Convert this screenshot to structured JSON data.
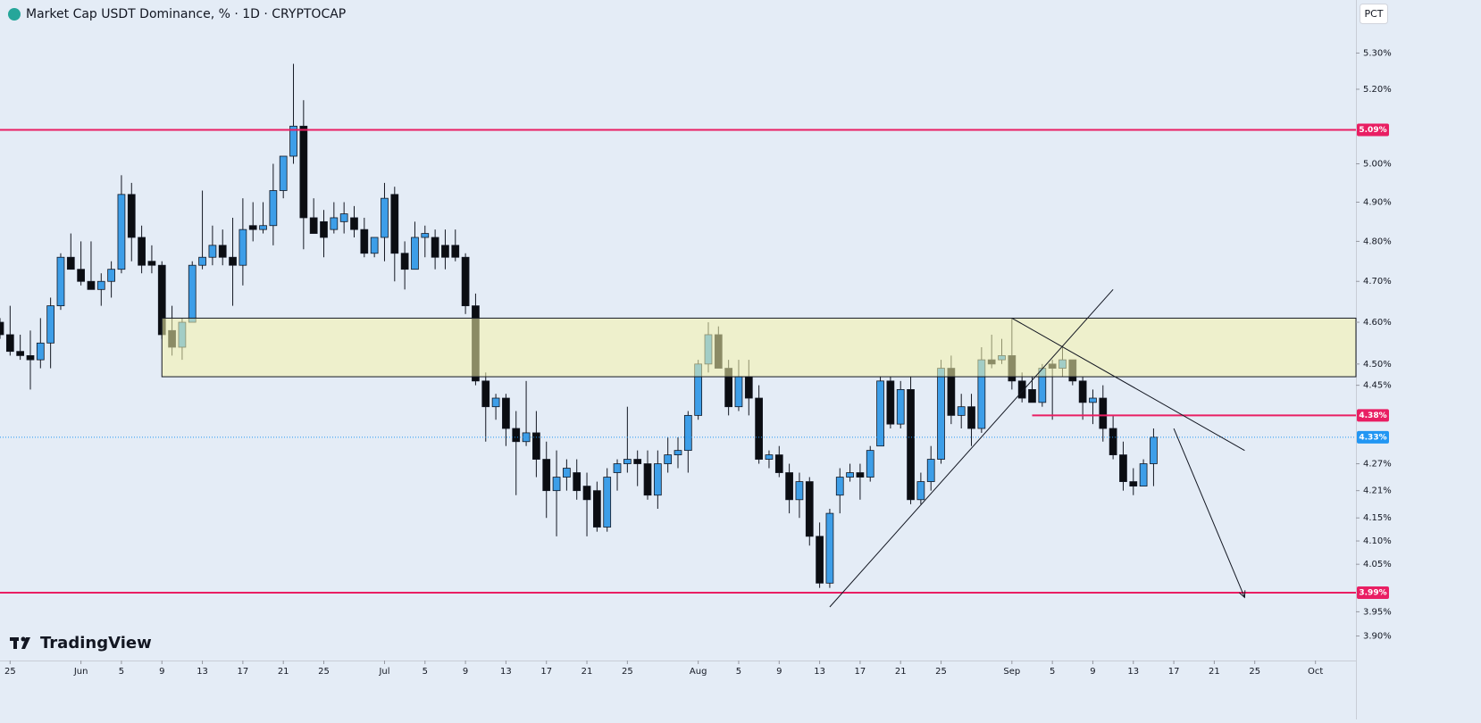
{
  "chart_data": {
    "type": "candlestick",
    "title": "Market Cap USDT Dominance, % · 1D · CRYPTOCAP",
    "scale_label": "PCT",
    "watermark": "TradingView",
    "log_scale": true,
    "up_color": "#3d9ee8",
    "down_color": "#0b0d12",
    "wick_color": "#131722",
    "x": [
      "05-24",
      "05-25",
      "05-26",
      "05-27",
      "05-28",
      "05-29",
      "05-30",
      "05-31",
      "06-01",
      "06-02",
      "06-03",
      "06-04",
      "06-05",
      "06-06",
      "06-07",
      "06-08",
      "06-09",
      "06-10",
      "06-11",
      "06-12",
      "06-13",
      "06-14",
      "06-15",
      "06-16",
      "06-17",
      "06-18",
      "06-19",
      "06-20",
      "06-21",
      "06-22",
      "06-23",
      "06-24",
      "06-25",
      "06-26",
      "06-27",
      "06-28",
      "06-29",
      "06-30",
      "07-01",
      "07-02",
      "07-03",
      "07-04",
      "07-05",
      "07-06",
      "07-07",
      "07-08",
      "07-09",
      "07-10",
      "07-11",
      "07-12",
      "07-13",
      "07-14",
      "07-15",
      "07-16",
      "07-17",
      "07-18",
      "07-19",
      "07-20",
      "07-21",
      "07-22",
      "07-23",
      "07-24",
      "07-25",
      "07-26",
      "07-27",
      "07-28",
      "07-29",
      "07-30",
      "07-31",
      "08-01",
      "08-02",
      "08-03",
      "08-04",
      "08-05",
      "08-06",
      "08-07",
      "08-08",
      "08-09",
      "08-10",
      "08-11",
      "08-12",
      "08-13",
      "08-14",
      "08-15",
      "08-16",
      "08-17",
      "08-18",
      "08-19",
      "08-20",
      "08-21",
      "08-22",
      "08-23",
      "08-24",
      "08-25",
      "08-26",
      "08-27",
      "08-28",
      "08-29",
      "08-30",
      "08-31",
      "09-01",
      "09-02",
      "09-03",
      "09-04",
      "09-05",
      "09-06",
      "09-07",
      "09-08",
      "09-09",
      "09-10",
      "09-11",
      "09-12",
      "09-13",
      "09-14",
      "09-15"
    ],
    "open": [
      4.6,
      4.57,
      4.53,
      4.52,
      4.51,
      4.55,
      4.64,
      4.76,
      4.73,
      4.7,
      4.68,
      4.7,
      4.73,
      4.92,
      4.81,
      4.75,
      4.74,
      4.58,
      4.54,
      4.6,
      4.74,
      4.76,
      4.79,
      4.76,
      4.74,
      4.84,
      4.83,
      4.84,
      4.93,
      5.02,
      5.1,
      4.86,
      4.85,
      4.83,
      4.85,
      4.86,
      4.83,
      4.77,
      4.81,
      4.92,
      4.77,
      4.73,
      4.81,
      4.81,
      4.79,
      4.79,
      4.76,
      4.64,
      4.46,
      4.4,
      4.42,
      4.35,
      4.32,
      4.34,
      4.28,
      4.21,
      4.24,
      4.25,
      4.22,
      4.21,
      4.13,
      4.25,
      4.27,
      4.28,
      4.27,
      4.2,
      4.27,
      4.29,
      4.3,
      4.38,
      4.5,
      4.57,
      4.49,
      4.4,
      4.47,
      4.42,
      4.28,
      4.29,
      4.25,
      4.19,
      4.23,
      4.11,
      4.01,
      4.2,
      4.24,
      4.25,
      4.24,
      4.31,
      4.46,
      4.36,
      4.44,
      4.19,
      4.23,
      4.28,
      4.49,
      4.38,
      4.4,
      4.35,
      4.51,
      4.51,
      4.52,
      4.46,
      4.44,
      4.41,
      4.5,
      4.49,
      4.51,
      4.46,
      4.41,
      4.42,
      4.35,
      4.29,
      4.23,
      4.22,
      4.27
    ],
    "high": [
      4.61,
      4.64,
      4.57,
      4.58,
      4.61,
      4.66,
      4.77,
      4.82,
      4.8,
      4.8,
      4.72,
      4.75,
      4.97,
      4.95,
      4.84,
      4.79,
      4.75,
      4.64,
      4.61,
      4.75,
      4.93,
      4.84,
      4.83,
      4.86,
      4.91,
      4.9,
      4.9,
      5.0,
      5.02,
      5.27,
      5.17,
      4.91,
      4.88,
      4.9,
      4.9,
      4.89,
      4.86,
      4.81,
      4.95,
      4.94,
      4.8,
      4.85,
      4.84,
      4.83,
      4.83,
      4.83,
      4.77,
      4.67,
      4.48,
      4.43,
      4.43,
      4.39,
      4.46,
      4.39,
      4.32,
      4.3,
      4.28,
      4.28,
      4.25,
      4.23,
      4.26,
      4.28,
      4.4,
      4.3,
      4.3,
      4.3,
      4.33,
      4.33,
      4.39,
      4.51,
      4.6,
      4.59,
      4.51,
      4.51,
      4.51,
      4.45,
      4.3,
      4.31,
      4.27,
      4.25,
      4.24,
      4.14,
      4.17,
      4.26,
      4.27,
      4.27,
      4.31,
      4.47,
      4.47,
      4.46,
      4.47,
      4.25,
      4.31,
      4.51,
      4.52,
      4.43,
      4.43,
      4.54,
      4.57,
      4.56,
      4.61,
      4.48,
      4.47,
      4.5,
      4.51,
      4.54,
      4.51,
      4.47,
      4.44,
      4.45,
      4.38,
      4.32,
      4.26,
      4.28,
      4.35
    ],
    "low": [
      4.56,
      4.52,
      4.51,
      4.44,
      4.49,
      4.49,
      4.63,
      4.73,
      4.69,
      4.68,
      4.64,
      4.66,
      4.72,
      4.75,
      4.72,
      4.72,
      4.56,
      4.52,
      4.51,
      4.6,
      4.73,
      4.74,
      4.74,
      4.64,
      4.69,
      4.8,
      4.82,
      4.79,
      4.91,
      5.0,
      4.78,
      4.82,
      4.76,
      4.82,
      4.82,
      4.81,
      4.76,
      4.76,
      4.75,
      4.7,
      4.68,
      4.73,
      4.76,
      4.73,
      4.73,
      4.75,
      4.62,
      4.45,
      4.32,
      4.37,
      4.31,
      4.2,
      4.31,
      4.24,
      4.15,
      4.11,
      4.21,
      4.19,
      4.11,
      4.12,
      4.12,
      4.21,
      4.25,
      4.22,
      4.19,
      4.17,
      4.25,
      4.26,
      4.25,
      4.37,
      4.48,
      4.49,
      4.38,
      4.39,
      4.38,
      4.27,
      4.26,
      4.24,
      4.16,
      4.15,
      4.09,
      4.0,
      4.0,
      4.16,
      4.23,
      4.19,
      4.23,
      4.31,
      4.35,
      4.35,
      4.18,
      4.18,
      4.21,
      4.27,
      4.36,
      4.35,
      4.31,
      4.34,
      4.49,
      4.5,
      4.44,
      4.41,
      4.41,
      4.4,
      4.37,
      4.47,
      4.45,
      4.37,
      4.36,
      4.32,
      4.28,
      4.21,
      4.2,
      4.22,
      4.22
    ],
    "close": [
      4.57,
      4.53,
      4.52,
      4.51,
      4.55,
      4.64,
      4.76,
      4.73,
      4.7,
      4.68,
      4.7,
      4.73,
      4.92,
      4.81,
      4.74,
      4.74,
      4.57,
      4.54,
      4.6,
      4.74,
      4.76,
      4.79,
      4.76,
      4.74,
      4.83,
      4.83,
      4.84,
      4.93,
      5.02,
      5.1,
      4.86,
      4.82,
      4.81,
      4.86,
      4.87,
      4.83,
      4.77,
      4.81,
      4.91,
      4.77,
      4.73,
      4.81,
      4.82,
      4.76,
      4.76,
      4.76,
      4.64,
      4.46,
      4.4,
      4.42,
      4.35,
      4.32,
      4.34,
      4.28,
      4.21,
      4.24,
      4.26,
      4.21,
      4.19,
      4.13,
      4.24,
      4.27,
      4.28,
      4.27,
      4.2,
      4.27,
      4.29,
      4.3,
      4.38,
      4.5,
      4.57,
      4.49,
      4.4,
      4.47,
      4.42,
      4.28,
      4.29,
      4.25,
      4.19,
      4.23,
      4.11,
      4.01,
      4.16,
      4.24,
      4.25,
      4.24,
      4.3,
      4.46,
      4.36,
      4.44,
      4.19,
      4.23,
      4.28,
      4.49,
      4.38,
      4.4,
      4.35,
      4.51,
      4.5,
      4.52,
      4.46,
      4.42,
      4.41,
      4.49,
      4.49,
      4.51,
      4.46,
      4.41,
      4.42,
      4.35,
      4.29,
      4.23,
      4.22,
      4.27,
      4.33
    ],
    "xlim": [
      "05-24",
      "10-05"
    ],
    "xticks": [
      {
        "value": "05-25",
        "label": "25"
      },
      {
        "value": "06-01",
        "label": "Jun"
      },
      {
        "value": "06-05",
        "label": "5"
      },
      {
        "value": "06-09",
        "label": "9"
      },
      {
        "value": "06-13",
        "label": "13"
      },
      {
        "value": "06-17",
        "label": "17"
      },
      {
        "value": "06-21",
        "label": "21"
      },
      {
        "value": "06-25",
        "label": "25"
      },
      {
        "value": "07-01",
        "label": "Jul"
      },
      {
        "value": "07-05",
        "label": "5"
      },
      {
        "value": "07-09",
        "label": "9"
      },
      {
        "value": "07-13",
        "label": "13"
      },
      {
        "value": "07-17",
        "label": "17"
      },
      {
        "value": "07-21",
        "label": "21"
      },
      {
        "value": "07-25",
        "label": "25"
      },
      {
        "value": "08-01",
        "label": "Aug"
      },
      {
        "value": "08-05",
        "label": "5"
      },
      {
        "value": "08-09",
        "label": "9"
      },
      {
        "value": "08-13",
        "label": "13"
      },
      {
        "value": "08-17",
        "label": "17"
      },
      {
        "value": "08-21",
        "label": "21"
      },
      {
        "value": "08-25",
        "label": "25"
      },
      {
        "value": "09-01",
        "label": "Sep"
      },
      {
        "value": "09-05",
        "label": "5"
      },
      {
        "value": "09-09",
        "label": "9"
      },
      {
        "value": "09-13",
        "label": "13"
      },
      {
        "value": "09-17",
        "label": "17"
      },
      {
        "value": "09-21",
        "label": "21"
      },
      {
        "value": "09-25",
        "label": "25"
      },
      {
        "value": "10-01",
        "label": "Oct"
      }
    ],
    "ylim": [
      3.85,
      5.45
    ],
    "yticks": [
      {
        "value": 5.3,
        "label": "5.30%"
      },
      {
        "value": 5.2,
        "label": "5.20%"
      },
      {
        "value": 5.0,
        "label": "5.00%"
      },
      {
        "value": 4.9,
        "label": "4.90%"
      },
      {
        "value": 4.8,
        "label": "4.80%"
      },
      {
        "value": 4.7,
        "label": "4.70%"
      },
      {
        "value": 4.6,
        "label": "4.60%"
      },
      {
        "value": 4.5,
        "label": "4.50%"
      },
      {
        "value": 4.45,
        "label": "4.45%"
      },
      {
        "value": 4.27,
        "label": "4.27%"
      },
      {
        "value": 4.21,
        "label": "4.21%"
      },
      {
        "value": 4.15,
        "label": "4.15%"
      },
      {
        "value": 4.1,
        "label": "4.10%"
      },
      {
        "value": 4.05,
        "label": "4.05%"
      },
      {
        "value": 3.95,
        "label": "3.95%"
      },
      {
        "value": 3.9,
        "label": "3.90%"
      }
    ],
    "levels": [
      {
        "value": 5.09,
        "label": "5.09%",
        "start": "05-24",
        "color": "#e91e63"
      },
      {
        "value": 4.38,
        "label": "4.38%",
        "start": "09-03",
        "color": "#e91e63"
      },
      {
        "value": 3.99,
        "label": "3.99%",
        "start": "05-24",
        "color": "#e91e63"
      }
    ],
    "last_price": {
      "value": 4.33,
      "label": "4.33%",
      "color": "#2196f3"
    },
    "zone": {
      "top": 4.61,
      "bottom": 4.47,
      "start": "06-09",
      "color": "rgba(246,244,170,0.55)"
    },
    "trendlines": [
      {
        "x": [
          "08-14",
          "09-11"
        ],
        "y": [
          3.96,
          4.68
        ]
      },
      {
        "x": [
          "09-01",
          "09-24"
        ],
        "y": [
          4.61,
          4.3
        ]
      }
    ],
    "arrow": {
      "x": [
        "09-17",
        "09-24"
      ],
      "y": [
        4.35,
        3.98
      ]
    }
  }
}
